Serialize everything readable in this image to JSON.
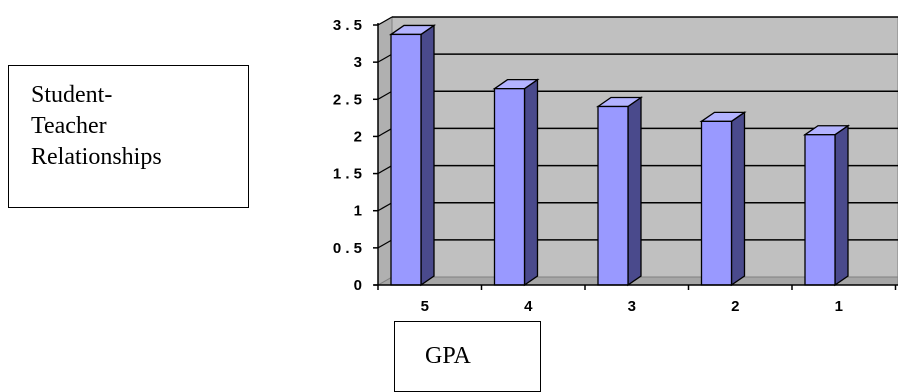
{
  "labels": {
    "y_label_lines": [
      "Student-",
      "Teacher",
      "Relationships"
    ],
    "x_label": "GPA"
  },
  "chart_data": {
    "type": "bar",
    "title": "",
    "ylabel": "Student-Teacher Relationships",
    "xlabel": "GPA",
    "categories": [
      "5",
      "4",
      "3",
      "2",
      "1"
    ],
    "values": [
      3.4,
      2.67,
      2.43,
      2.23,
      2.05
    ],
    "ylim": [
      0,
      3.5
    ],
    "y_tick_labels": [
      "0",
      "0 . 5",
      "1",
      "1 . 5",
      "2",
      "2 . 5",
      "3",
      "3 . 5"
    ],
    "grid": true,
    "legend": "none",
    "colors": {
      "bar_front": "#9999FF",
      "bar_side": "#4A4A8C",
      "bar_top": "#B3B3FF",
      "wall": "#C0C0C0",
      "floor": "#A6A6A6"
    }
  }
}
